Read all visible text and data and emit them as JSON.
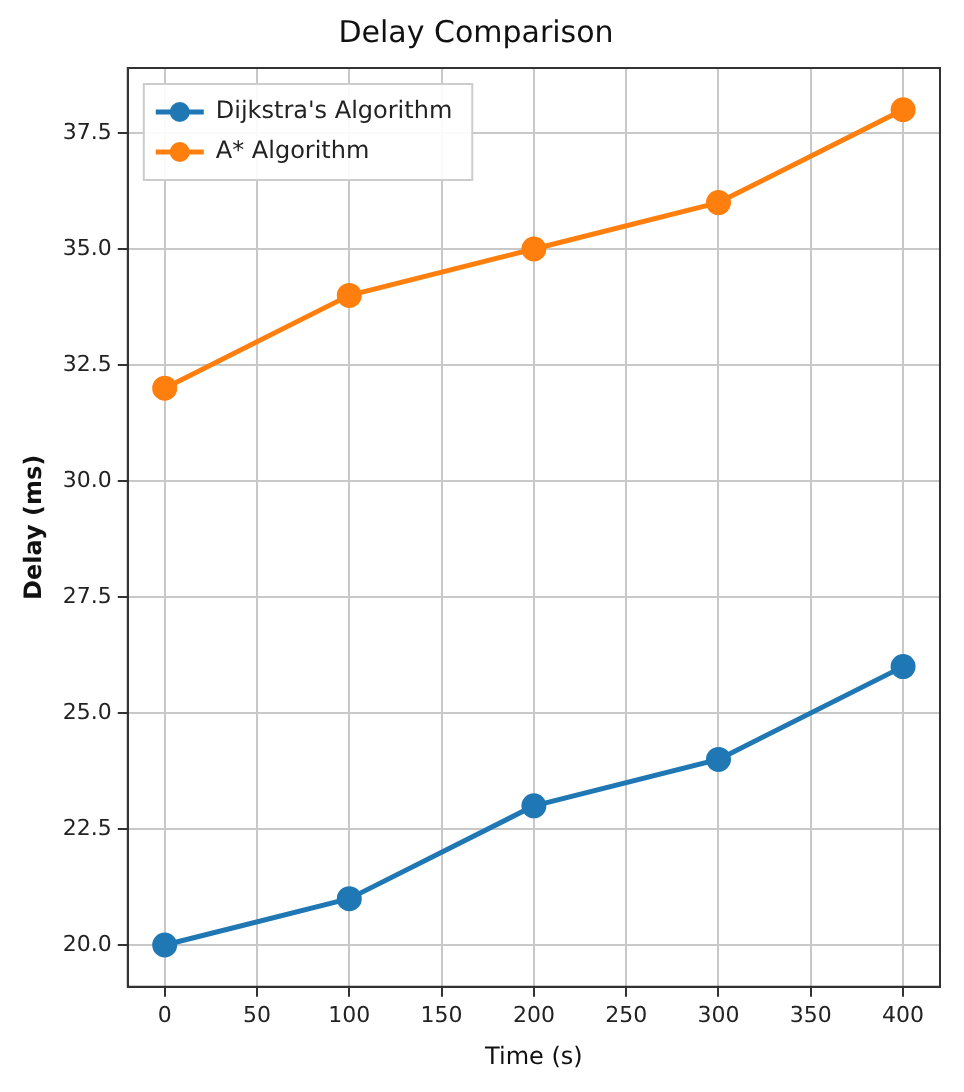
{
  "chart_data": {
    "type": "line",
    "title": "Delay Comparison",
    "xlabel": "Time (s)",
    "ylabel": "Delay (ms)",
    "x": [
      0,
      100,
      200,
      300,
      400
    ],
    "series": [
      {
        "name": "Dijkstra's Algorithm",
        "color": "#1f77b4",
        "values": [
          20,
          21,
          23,
          24,
          26
        ]
      },
      {
        "name": "A* Algorithm",
        "color": "#ff7f0e",
        "values": [
          32,
          34,
          35,
          36,
          38
        ]
      }
    ],
    "xlim": [
      -20,
      420
    ],
    "xticks": [
      0,
      50,
      100,
      150,
      200,
      250,
      300,
      350,
      400
    ],
    "ylim": [
      19.1,
      38.9
    ],
    "yticks": [
      {
        "value": 20,
        "label": "20.0"
      },
      {
        "value": 22.5,
        "label": "22.5"
      },
      {
        "value": 25,
        "label": "25.0"
      },
      {
        "value": 27.5,
        "label": "27.5"
      },
      {
        "value": 30,
        "label": "30.0"
      },
      {
        "value": 32.5,
        "label": "32.5"
      },
      {
        "value": 35,
        "label": "35.0"
      },
      {
        "value": 37.5,
        "label": "37.5"
      }
    ],
    "grid": true,
    "legend": "top left",
    "marker": "circle",
    "line_style": "solid"
  }
}
